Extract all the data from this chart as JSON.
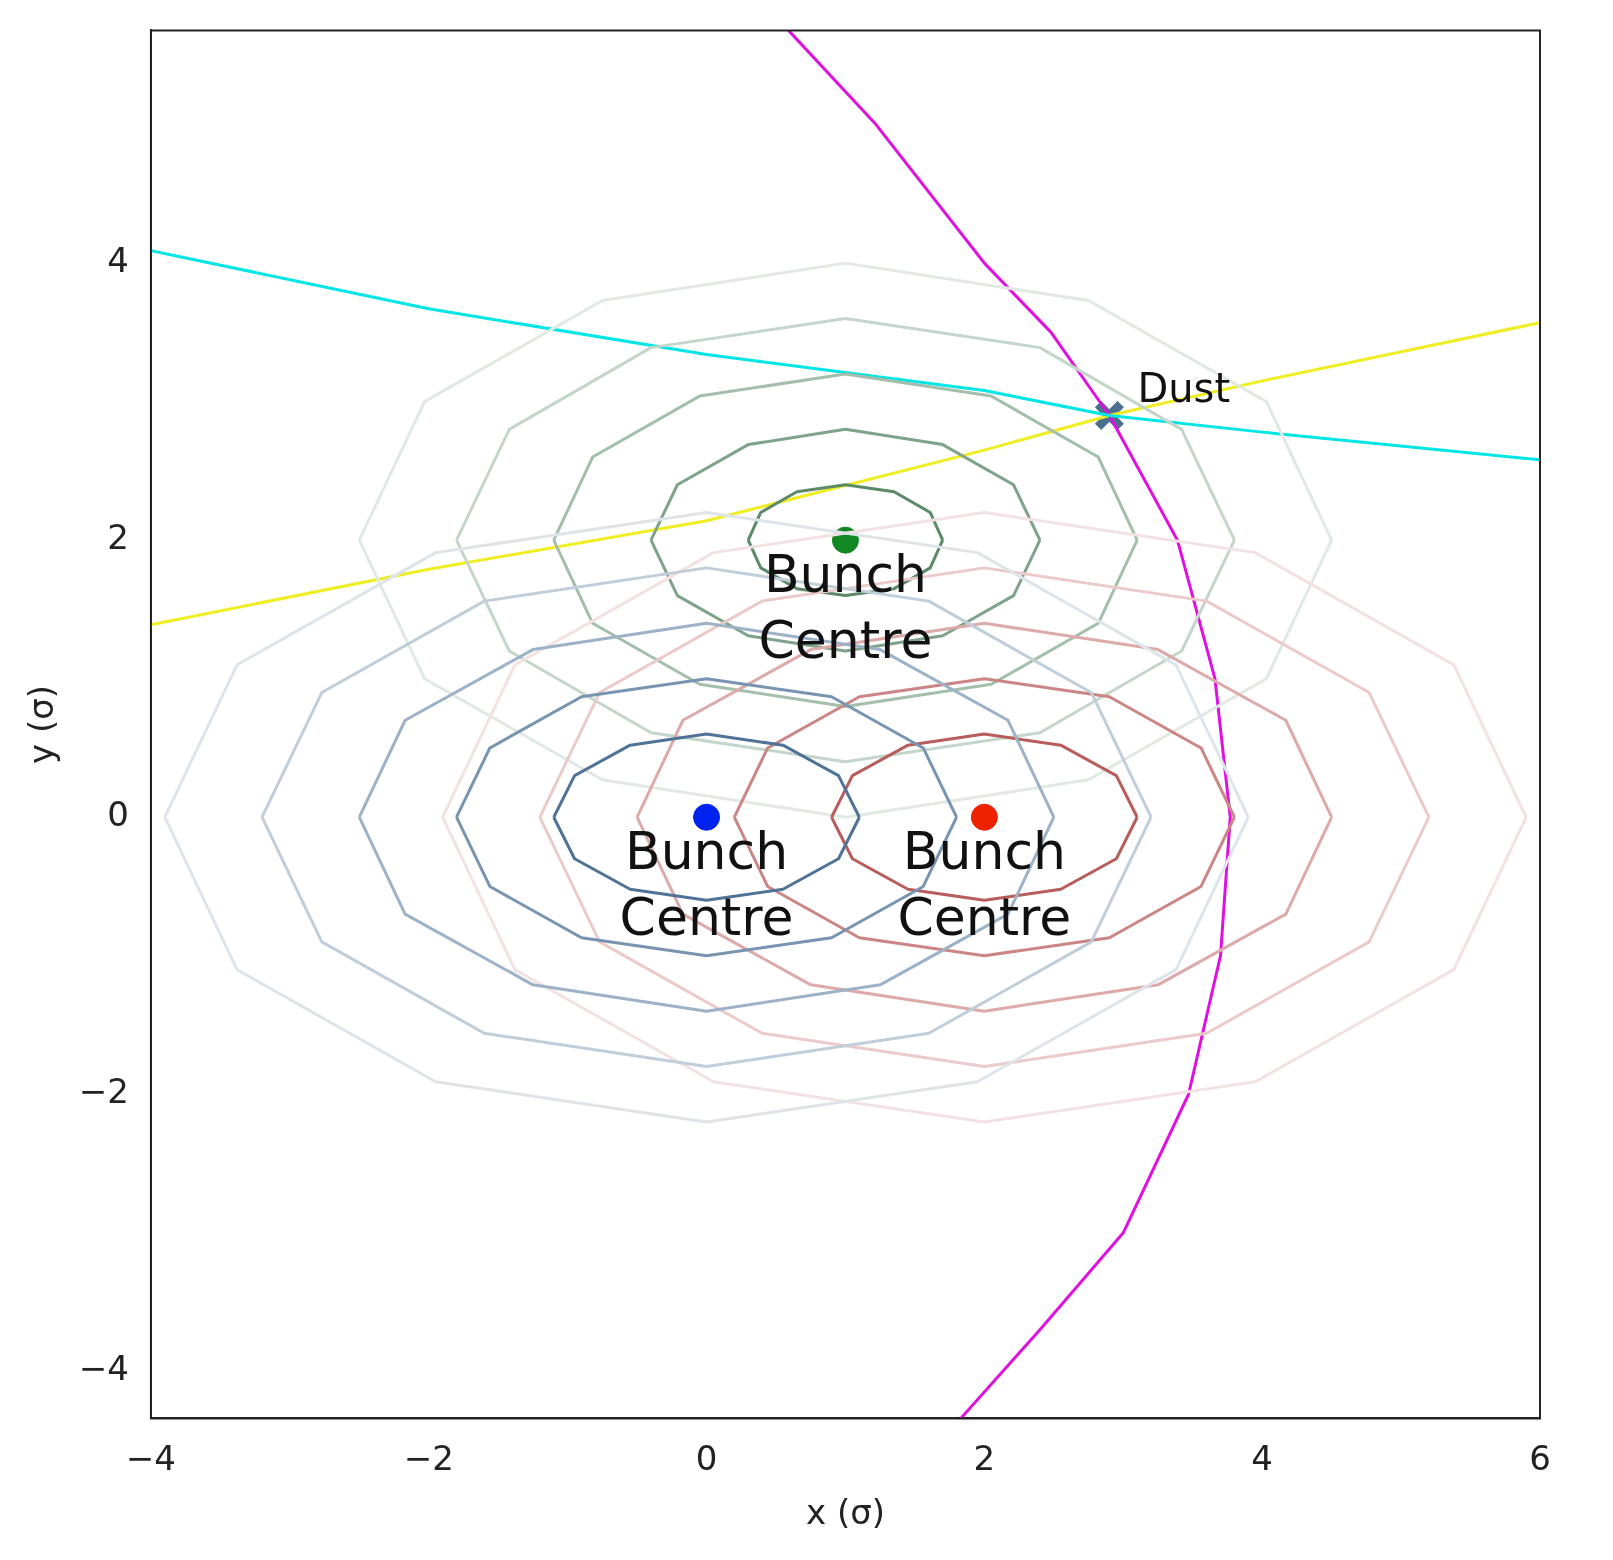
{
  "chart_data": {
    "type": "line",
    "xlabel": "x (σ)",
    "ylabel": "y (σ)",
    "xlim": [
      -4,
      6
    ],
    "ylim": [
      -4.34,
      5.68
    ],
    "xticks": [
      {
        "value": -4,
        "label": "−4"
      },
      {
        "value": -2,
        "label": "−2"
      },
      0,
      2,
      4,
      6
    ],
    "yticks": [
      {
        "value": -4,
        "label": "−4"
      },
      {
        "value": -2,
        "label": "−2"
      },
      0,
      2,
      4
    ],
    "grid": false,
    "legend": false,
    "series": [
      {
        "color": "#4f7396",
        "x": [
          1.1,
          0.95,
          0.55,
          0,
          -0.55,
          -0.95,
          -1.1
        ],
        "values": [
          0,
          0.3,
          0.52,
          0.6,
          0.52,
          0.3,
          0
        ]
      },
      {
        "color": "#4f7396",
        "x": [
          -1.1,
          -0.95,
          -0.55,
          0,
          0.55,
          0.95,
          1.1
        ],
        "values": [
          0,
          -0.3,
          -0.52,
          -0.6,
          -0.52,
          -0.3,
          0
        ]
      },
      {
        "color": "#7894b0",
        "x": [
          1.8,
          1.56,
          0.9,
          0,
          -0.9,
          -1.56,
          -1.8
        ],
        "values": [
          0,
          0.5,
          0.87,
          1,
          0.87,
          0.5,
          0
        ]
      },
      {
        "color": "#7894b0",
        "x": [
          -1.8,
          -1.56,
          -0.9,
          0,
          0.9,
          1.56,
          1.8
        ],
        "values": [
          0,
          -0.5,
          -0.87,
          -1,
          -0.87,
          -0.5,
          0
        ]
      },
      {
        "color": "#9db2c7",
        "x": [
          2.5,
          2.17,
          1.25,
          0,
          -1.25,
          -2.17,
          -2.5
        ],
        "values": [
          0,
          0.7,
          1.21,
          1.4,
          1.21,
          0.7,
          0
        ]
      },
      {
        "color": "#9db2c7",
        "x": [
          -2.5,
          -2.17,
          -1.25,
          0,
          1.25,
          2.17,
          2.5
        ],
        "values": [
          0,
          -0.7,
          -1.21,
          -1.4,
          -1.21,
          -0.7,
          0
        ]
      },
      {
        "color": "#c0ceda",
        "x": [
          3.2,
          2.77,
          1.6,
          0,
          -1.6,
          -2.77,
          -3.2
        ],
        "values": [
          0,
          0.9,
          1.56,
          1.8,
          1.56,
          0.9,
          0
        ]
      },
      {
        "color": "#c0ceda",
        "x": [
          -3.2,
          -2.77,
          -1.6,
          0,
          1.6,
          2.77,
          3.2
        ],
        "values": [
          0,
          -0.9,
          -1.56,
          -1.8,
          -1.56,
          -0.9,
          0
        ]
      },
      {
        "color": "#dde4ea",
        "x": [
          3.9,
          3.38,
          1.95,
          0,
          -1.95,
          -3.38,
          -3.9
        ],
        "values": [
          0,
          1.1,
          1.91,
          2.2,
          1.91,
          1.1,
          0
        ]
      },
      {
        "color": "#dde4ea",
        "x": [
          -3.9,
          -3.38,
          -1.95,
          0,
          1.95,
          3.38,
          3.9
        ],
        "values": [
          0,
          -1.1,
          -1.91,
          -2.2,
          -1.91,
          -1.1,
          0
        ]
      },
      {
        "color": "#b85c5c",
        "x": [
          3.1,
          2.95,
          2.55,
          2,
          1.45,
          1.05,
          0.9
        ],
        "values": [
          0,
          0.3,
          0.52,
          0.6,
          0.52,
          0.3,
          0
        ]
      },
      {
        "color": "#b85c5c",
        "x": [
          0.9,
          1.05,
          1.45,
          2,
          2.55,
          2.95,
          3.1
        ],
        "values": [
          0,
          -0.3,
          -0.52,
          -0.6,
          -0.52,
          -0.3,
          0
        ]
      },
      {
        "color": "#cc8585",
        "x": [
          3.8,
          3.56,
          2.9,
          2,
          1.1,
          0.44,
          0.2
        ],
        "values": [
          0,
          0.5,
          0.87,
          1,
          0.87,
          0.5,
          0
        ]
      },
      {
        "color": "#cc8585",
        "x": [
          0.2,
          0.44,
          1.1,
          2,
          2.9,
          3.56,
          3.8
        ],
        "values": [
          0,
          -0.5,
          -0.87,
          -1,
          -0.87,
          -0.5,
          0
        ]
      },
      {
        "color": "#ddaaaa",
        "x": [
          4.5,
          4.17,
          3.25,
          2,
          0.75,
          -0.17,
          -0.5
        ],
        "values": [
          0,
          0.7,
          1.21,
          1.4,
          1.21,
          0.7,
          0
        ]
      },
      {
        "color": "#ddaaaa",
        "x": [
          -0.5,
          -0.17,
          0.75,
          2,
          3.25,
          4.17,
          4.5
        ],
        "values": [
          0,
          -0.7,
          -1.21,
          -1.4,
          -1.21,
          -0.7,
          0
        ]
      },
      {
        "color": "#ebcaca",
        "x": [
          5.2,
          4.77,
          3.6,
          2,
          0.4,
          -0.77,
          -1.2
        ],
        "values": [
          0,
          0.9,
          1.56,
          1.8,
          1.56,
          0.9,
          0
        ]
      },
      {
        "color": "#ebcaca",
        "x": [
          -1.2,
          -0.77,
          0.4,
          2,
          3.6,
          4.77,
          5.2
        ],
        "values": [
          0,
          -0.9,
          -1.56,
          -1.8,
          -1.56,
          -0.9,
          0
        ]
      },
      {
        "color": "#f3e2e2",
        "x": [
          5.9,
          5.38,
          3.95,
          2,
          0.05,
          -1.38,
          -1.9
        ],
        "values": [
          0,
          1.1,
          1.91,
          2.2,
          1.91,
          1.1,
          0
        ]
      },
      {
        "color": "#f3e2e2",
        "x": [
          -1.9,
          -1.38,
          0.05,
          2,
          3.95,
          5.38,
          5.9
        ],
        "values": [
          0,
          -1.1,
          -1.91,
          -2.2,
          -1.91,
          -1.1,
          0
        ]
      },
      {
        "color": "#5c8a68",
        "x": [
          1.7,
          1.61,
          1.35,
          1,
          0.65,
          0.39,
          0.3
        ],
        "values": [
          2,
          2.2,
          2.35,
          2.4,
          2.35,
          2.2,
          2
        ]
      },
      {
        "color": "#5c8a68",
        "x": [
          0.3,
          0.39,
          0.65,
          1,
          1.35,
          1.61,
          1.7
        ],
        "values": [
          2,
          1.8,
          1.65,
          1.6,
          1.65,
          1.8,
          2
        ]
      },
      {
        "color": "#7fa38a",
        "x": [
          2.4,
          2.21,
          1.7,
          1,
          0.3,
          -0.21,
          -0.4
        ],
        "values": [
          2,
          2.4,
          2.69,
          2.8,
          2.69,
          2.4,
          2
        ]
      },
      {
        "color": "#7fa38a",
        "x": [
          -0.4,
          -0.21,
          0.3,
          1,
          1.7,
          2.21,
          2.4
        ],
        "values": [
          2,
          1.6,
          1.31,
          1.2,
          1.31,
          1.6,
          2
        ]
      },
      {
        "color": "#a3bfab",
        "x": [
          3.1,
          2.82,
          2.05,
          1,
          -0.05,
          -0.82,
          -1.1
        ],
        "values": [
          2,
          2.6,
          3.04,
          3.2,
          3.04,
          2.6,
          2
        ]
      },
      {
        "color": "#a3bfab",
        "x": [
          -1.1,
          -0.82,
          -0.05,
          1,
          2.05,
          2.82,
          3.1
        ],
        "values": [
          2,
          1.4,
          0.96,
          0.8,
          0.96,
          1.4,
          2
        ]
      },
      {
        "color": "#c4d6c9",
        "x": [
          3.8,
          3.42,
          2.4,
          1,
          -0.4,
          -1.42,
          -1.8
        ],
        "values": [
          2,
          2.8,
          3.39,
          3.6,
          3.39,
          2.8,
          2
        ]
      },
      {
        "color": "#c4d6c9",
        "x": [
          -1.8,
          -1.42,
          -0.4,
          1,
          2.4,
          3.42,
          3.8
        ],
        "values": [
          2,
          1.2,
          0.61,
          0.4,
          0.61,
          1.2,
          2
        ]
      },
      {
        "color": "#e0eae3",
        "x": [
          4.5,
          4.03,
          2.75,
          1,
          -0.75,
          -2.03,
          -2.5
        ],
        "values": [
          2,
          3,
          3.73,
          4,
          3.73,
          3,
          2
        ]
      },
      {
        "color": "#e0eae3",
        "x": [
          -2.5,
          -2.03,
          -0.75,
          1,
          2.75,
          4.03,
          4.5
        ],
        "values": [
          2,
          1,
          0.27,
          0,
          0.27,
          1,
          2
        ]
      },
      {
        "color": "#00e5e5",
        "x": [
          -4,
          -2,
          0,
          2,
          2.9,
          4,
          6
        ],
        "values": [
          4.09,
          3.67,
          3.34,
          3.08,
          2.9,
          2.78,
          2.58
        ]
      },
      {
        "color": "#eeee22",
        "x": [
          -4,
          -2,
          0,
          2,
          2.9,
          4,
          6
        ],
        "values": [
          1.39,
          1.79,
          2.14,
          2.65,
          2.9,
          3.15,
          3.57
        ]
      },
      {
        "color": "#e010e0",
        "x": [
          0.59,
          1.22,
          2.0,
          2.48,
          2.9,
          3.39,
          3.66,
          3.77,
          3.7,
          3.47,
          3.0,
          2.4,
          1.83
        ],
        "values": [
          5.68,
          5,
          4,
          3.5,
          2.9,
          2,
          1,
          0,
          -1,
          -2,
          -3,
          -3.7,
          -4.34
        ]
      },
      {
        "type": "scatter",
        "marker": "circle",
        "color": "#0022ee",
        "x": [
          0
        ],
        "values": [
          0
        ]
      },
      {
        "type": "scatter",
        "marker": "circle",
        "color": "#ee2200",
        "x": [
          2
        ],
        "values": [
          0
        ]
      },
      {
        "type": "scatter",
        "marker": "circle",
        "color": "#118822",
        "x": [
          1
        ],
        "values": [
          2
        ]
      },
      {
        "type": "scatter",
        "marker": "cross",
        "color": "#4a6f8f",
        "x": [
          2.9
        ],
        "values": [
          2.9
        ]
      }
    ],
    "annotations": [
      {
        "text": "Bunch\nCentre",
        "x": 0,
        "y": 0
      },
      {
        "text": "Bunch\nCentre",
        "x": 2,
        "y": 0
      },
      {
        "text": "Bunch\nCentre",
        "x": 1,
        "y": 2
      },
      {
        "text": "Dust",
        "x": 2.9,
        "y": 2.9
      }
    ]
  }
}
